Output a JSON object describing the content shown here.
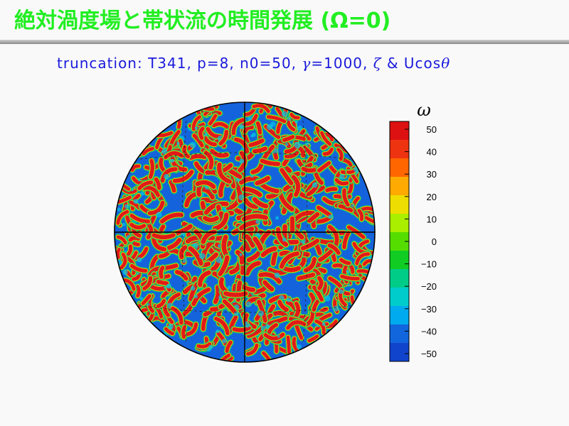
{
  "header": {
    "title": "絶対渦度場と帯状流の時間発展 (Ω=0)",
    "params_text": "truncation: T341, p=8, n0=50,",
    "gamma_symbol": "γ",
    "gamma_text": "=1000,",
    "zeta_symbol": "ζ",
    "and_text": "&",
    "ucos_text": "Ucos",
    "theta_symbol": "θ"
  },
  "colorbar": {
    "title": "ω",
    "ticks": [
      "50",
      "40",
      "30",
      "20",
      "10",
      "0",
      "−10",
      "−20",
      "−30",
      "−40",
      "−50"
    ],
    "colors": [
      "#dd1111",
      "#ee3311",
      "#ff6600",
      "#ffaa00",
      "#eedd00",
      "#aaee00",
      "#55dd00",
      "#11cc22",
      "#00cc88",
      "#00cccc",
      "#00aaee",
      "#1166dd",
      "#1144cc"
    ]
  },
  "palette": {
    "ocean_blue": "#1563dc",
    "positive_red": "#e01a18",
    "title_green": "#22ee22",
    "subtitle_blue": "#1a1adc"
  }
}
